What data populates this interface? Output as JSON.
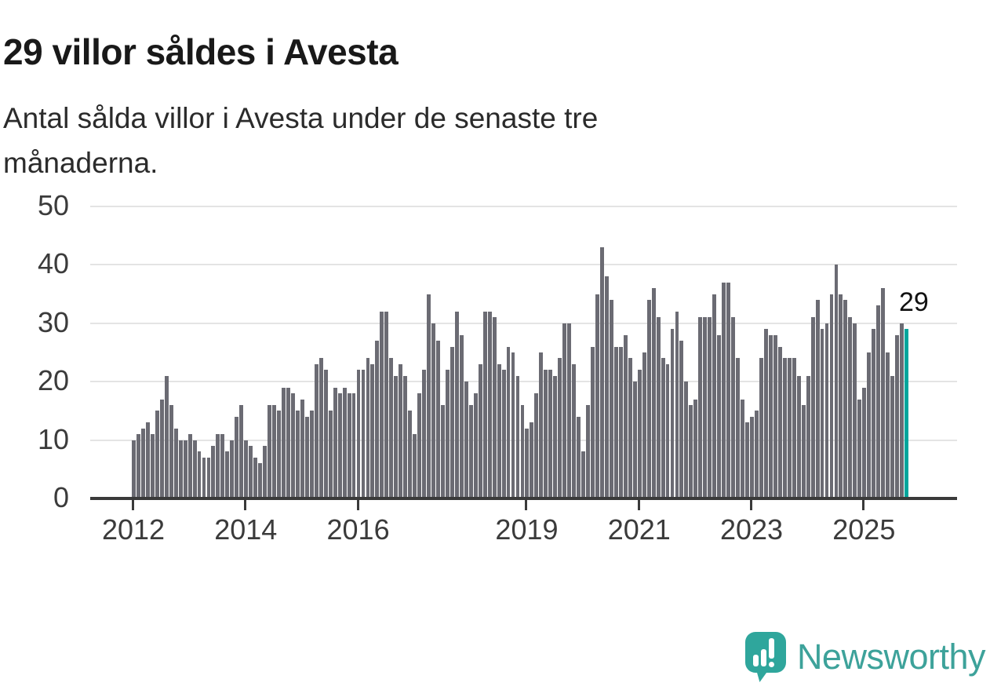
{
  "header": {
    "title": "29 villor såldes i Avesta",
    "subtitle": "Antal sålda villor i Avesta under de senaste tre månaderna.",
    "subtitle_lines": [
      "Antal sålda villor i Avesta under de senaste tre",
      "månaderna."
    ]
  },
  "annotation_label": "29",
  "colors": {
    "bar": "#6b6b73",
    "highlight": "#00a59c",
    "axis": "#3a3a3a",
    "gridline": "#e4e4e4",
    "title_text": "#191919",
    "logo_teal": "#3da29a",
    "logo_icon_teal": "#2fa69c"
  },
  "logo": {
    "wordmark": "Newsworthy",
    "icon": "newsworthy-speech-bubble-bar-chart-icon"
  },
  "chart_data": {
    "type": "bar",
    "title": "29 villor såldes i Avesta",
    "subtitle": "Antal sålda villor i Avesta under de senaste tre månaderna.",
    "x_unit": "month",
    "x_start": "2012-01",
    "x_end": "2025-10",
    "ylim": [
      0,
      50
    ],
    "y_ticks": [
      0,
      10,
      20,
      30,
      40,
      50
    ],
    "grid": "horizontal",
    "legend": "none",
    "x_tick_labels": [
      "2012",
      "2014",
      "2016",
      "2019",
      "2021",
      "2023",
      "2025"
    ],
    "x_tick_month_index": [
      0,
      24,
      48,
      84,
      108,
      132,
      156
    ],
    "values": [
      10,
      11,
      12,
      13,
      11,
      15,
      17,
      21,
      16,
      12,
      10,
      10,
      11,
      10,
      8,
      7,
      7,
      9,
      11,
      11,
      8,
      10,
      14,
      16,
      10,
      9,
      7,
      6,
      9,
      16,
      16,
      15,
      19,
      19,
      18,
      15,
      17,
      14,
      15,
      23,
      24,
      22,
      15,
      19,
      18,
      19,
      18,
      18,
      22,
      22,
      24,
      23,
      27,
      32,
      32,
      24,
      21,
      23,
      21,
      15,
      11,
      18,
      22,
      35,
      30,
      27,
      16,
      22,
      26,
      32,
      28,
      20,
      16,
      18,
      23,
      32,
      32,
      31,
      23,
      22,
      26,
      25,
      21,
      16,
      12,
      13,
      18,
      25,
      22,
      22,
      21,
      24,
      30,
      30,
      23,
      14,
      8,
      16,
      26,
      35,
      43,
      38,
      34,
      26,
      26,
      28,
      24,
      20,
      22,
      25,
      34,
      36,
      31,
      24,
      23,
      29,
      32,
      27,
      20,
      16,
      17,
      31,
      31,
      31,
      35,
      28,
      37,
      37,
      31,
      24,
      17,
      13,
      14,
      15,
      24,
      29,
      28,
      28,
      26,
      24,
      24,
      24,
      21,
      16,
      21,
      31,
      34,
      29,
      30,
      35,
      40,
      35,
      34,
      31,
      30,
      17,
      19,
      25,
      29,
      33,
      36,
      25,
      21,
      28,
      30,
      29
    ],
    "highlight_last_bar": true,
    "highlight_last_value": 29,
    "annotation": {
      "text": "29",
      "target": "last-bar"
    }
  }
}
